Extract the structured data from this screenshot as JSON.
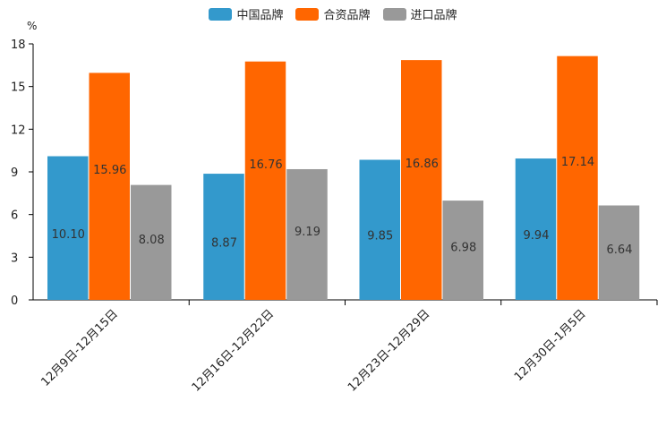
{
  "chart_data": {
    "type": "bar",
    "title": "",
    "unit": "%",
    "xlabel": "",
    "ylabel": "",
    "ylim": [
      0,
      18
    ],
    "yticks": [
      0,
      3,
      6,
      9,
      12,
      15,
      18
    ],
    "categories": [
      "12月9日-12月15日",
      "12月16日-12月22日",
      "12月23日-12月29日",
      "12月30日-1月5日"
    ],
    "series": [
      {
        "name": "中国品牌",
        "color": "#3399cc",
        "values": [
          10.1,
          8.87,
          9.85,
          9.94
        ],
        "labels": [
          "10.10",
          "8.87",
          "9.85",
          "9.94"
        ]
      },
      {
        "name": "合资品牌",
        "color": "#ff6600",
        "values": [
          15.96,
          16.76,
          16.86,
          17.14
        ],
        "labels": [
          "15.96",
          "16.76",
          "16.86",
          "17.14"
        ]
      },
      {
        "name": "进口品牌",
        "color": "#999999",
        "values": [
          8.08,
          9.19,
          6.98,
          6.64
        ],
        "labels": [
          "8.08",
          "9.19",
          "6.98",
          "6.64"
        ]
      }
    ],
    "legend_position": "top-center",
    "grid": false
  }
}
